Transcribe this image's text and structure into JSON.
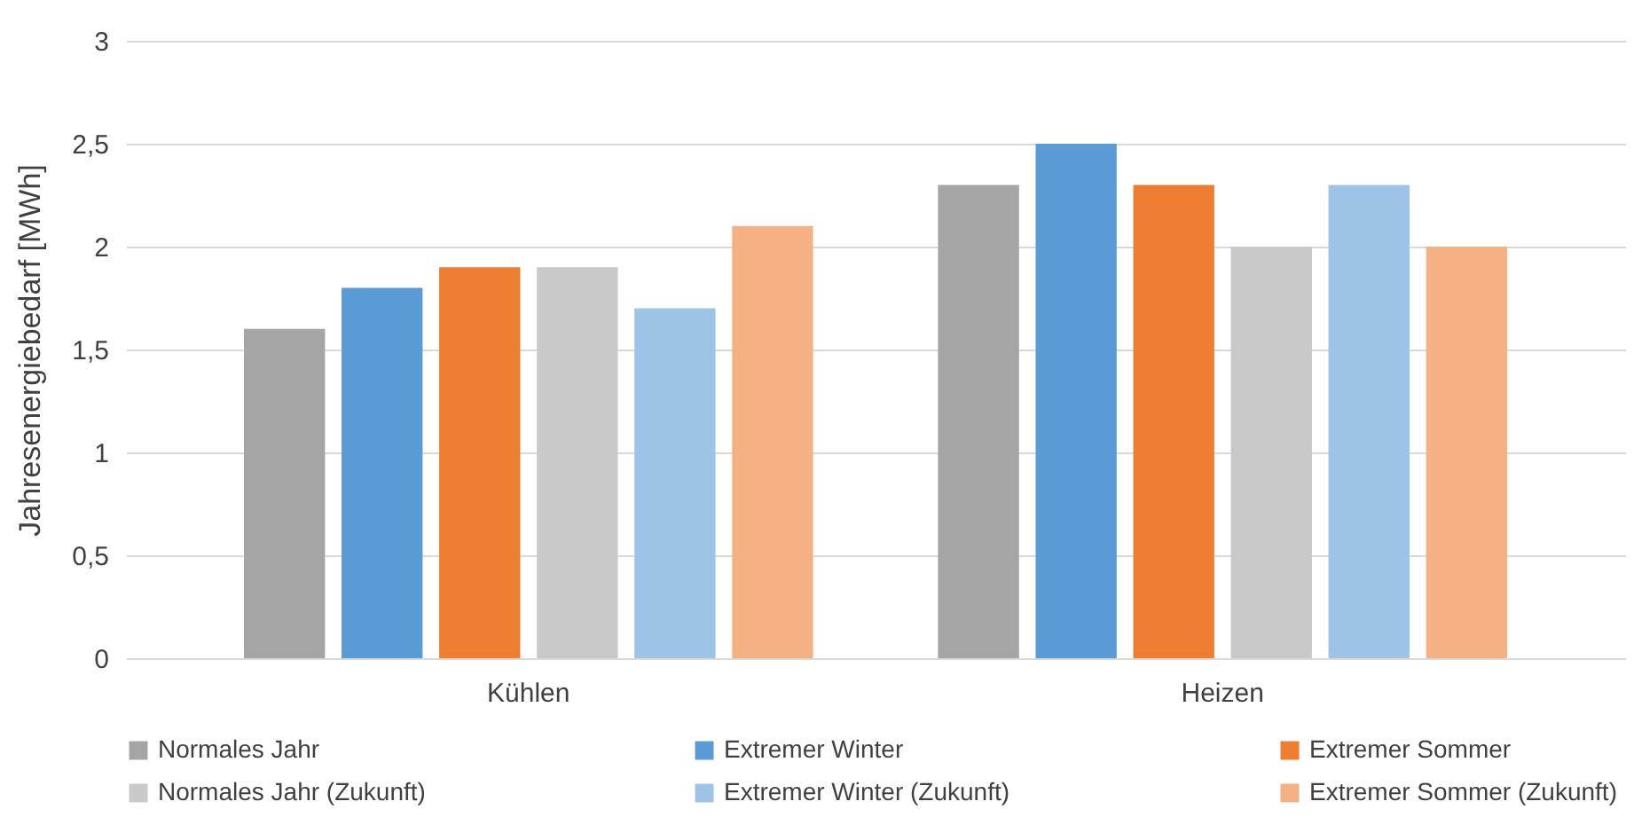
{
  "chart_data": {
    "type": "bar",
    "ylabel": "Jahresenergiebedarf [MWh]",
    "categories": [
      "Kühlen",
      "Heizen"
    ],
    "series": [
      {
        "name": "Normales Jahr",
        "color": "#a5a5a5",
        "values": [
          1.6,
          2.3
        ]
      },
      {
        "name": "Extremer Winter",
        "color": "#5b9bd5",
        "values": [
          1.8,
          2.5
        ]
      },
      {
        "name": "Extremer Sommer",
        "color": "#ed7d31",
        "values": [
          1.9,
          2.3
        ]
      },
      {
        "name": "Normales Jahr (Zukunft)",
        "color": "#c9c9c9",
        "values": [
          1.9,
          2.0
        ]
      },
      {
        "name": "Extremer Winter (Zukunft)",
        "color": "#9dc3e6",
        "values": [
          1.7,
          2.3
        ]
      },
      {
        "name": "Extremer Sommer (Zukunft)",
        "color": "#f4b183",
        "values": [
          2.1,
          2.0
        ]
      }
    ],
    "ylim": [
      0,
      3
    ],
    "yticks": [
      0,
      {
        "value": 0.5,
        "label": "0,5"
      },
      1,
      {
        "value": 1.5,
        "label": "1,5"
      },
      2,
      {
        "value": 2.5,
        "label": "2,5"
      },
      3
    ],
    "grid": "y",
    "legend": "bottom"
  }
}
